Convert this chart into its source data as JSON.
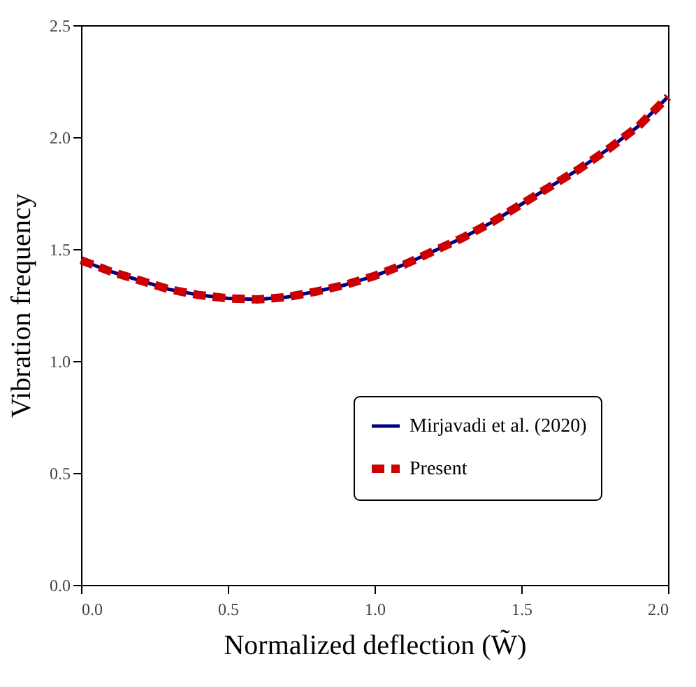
{
  "chart_data": {
    "type": "line",
    "xlabel": "Normalized deflection (W̃)",
    "ylabel": "Vibration frequency",
    "x": [
      0,
      0.1,
      0.2,
      0.3,
      0.4,
      0.5,
      0.6,
      0.7,
      0.8,
      0.9,
      1.0,
      1.1,
      1.2,
      1.3,
      1.4,
      1.5,
      1.6,
      1.7,
      1.8,
      1.9,
      2.0
    ],
    "series": [
      {
        "name": "Mirjavadi et al. (2020)",
        "color": "#000080",
        "line_style": "solid",
        "values": [
          1.45,
          1.4,
          1.36,
          1.32,
          1.295,
          1.28,
          1.275,
          1.285,
          1.31,
          1.34,
          1.38,
          1.43,
          1.49,
          1.55,
          1.62,
          1.7,
          1.78,
          1.86,
          1.95,
          2.05,
          2.18
        ]
      },
      {
        "name": "Present",
        "color": "#cc0000",
        "line_style": "dashed",
        "values": [
          1.45,
          1.4,
          1.36,
          1.32,
          1.295,
          1.28,
          1.275,
          1.285,
          1.31,
          1.34,
          1.38,
          1.43,
          1.49,
          1.55,
          1.62,
          1.7,
          1.78,
          1.86,
          1.95,
          2.05,
          2.18
        ]
      }
    ],
    "xlim": [
      0,
      2
    ],
    "xticks": [
      {
        "value": 0,
        "label": "0.0"
      },
      {
        "value": 0.5,
        "label": "0.5"
      },
      {
        "value": 1,
        "label": "1.0"
      },
      {
        "value": 1.5,
        "label": "1.5"
      },
      {
        "value": 2,
        "label": "2.0"
      }
    ],
    "ylim": [
      0,
      2.5
    ],
    "yticks": [
      {
        "value": 0,
        "label": "0.0"
      },
      {
        "value": 0.5,
        "label": "0.5"
      },
      {
        "value": 1,
        "label": "1.0"
      },
      {
        "value": 1.5,
        "label": "1.5"
      },
      {
        "value": 2,
        "label": "2.0"
      },
      {
        "value": 2.5,
        "label": "2.5"
      }
    ],
    "grid": false,
    "legend": "right",
    "marker": "none"
  }
}
